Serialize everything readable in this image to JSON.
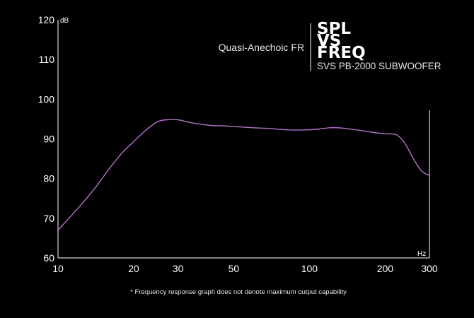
{
  "chart_data": {
    "type": "line",
    "xscale": "log",
    "xlim": [
      10,
      300
    ],
    "ylim": [
      60,
      120
    ],
    "x_ticks": [
      10,
      20,
      30,
      50,
      100,
      200,
      300
    ],
    "y_ticks": [
      60,
      70,
      80,
      90,
      100,
      110,
      120
    ],
    "x_unit": "Hz",
    "y_unit": "dB",
    "subtitle": "Quasi-Anechoic FR",
    "title_lines": [
      "SPL",
      "VS",
      "FREQ"
    ],
    "model": "SVS PB-2000 SUBWOOFER",
    "footnote": "* Frequency response graph does not denote maximum output capability",
    "line_color": "#b572c9",
    "grid": false,
    "series": [
      {
        "x": [
          10,
          12,
          14,
          16,
          18,
          20,
          22,
          23.5,
          25,
          27,
          30,
          33,
          36,
          40,
          45,
          50,
          60,
          70,
          80,
          90,
          100,
          110,
          120,
          130,
          140,
          160,
          180,
          200,
          215,
          225,
          240,
          260,
          280,
          300
        ],
        "y": [
          67,
          72.5,
          77.5,
          82.5,
          86.5,
          89.3,
          91.8,
          93.3,
          94.4,
          94.8,
          94.8,
          94.2,
          93.8,
          93.4,
          93.3,
          93.1,
          92.8,
          92.6,
          92.3,
          92.2,
          92.3,
          92.5,
          92.8,
          92.8,
          92.6,
          92.1,
          91.6,
          91.3,
          91.2,
          90.8,
          88.8,
          84.8,
          81.8,
          80.8
        ]
      }
    ]
  }
}
